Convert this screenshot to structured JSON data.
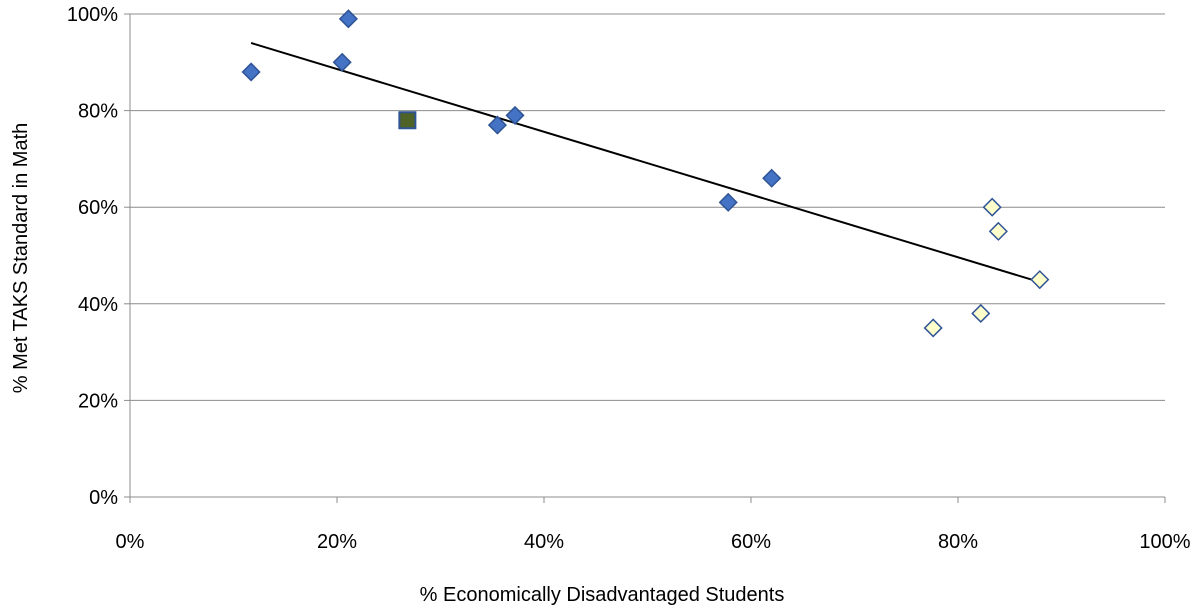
{
  "chart_data": {
    "type": "scatter",
    "title": "",
    "xlabel": "% Economically Disadvantaged Students",
    "ylabel": "% Met TAKS Standard in Math",
    "xlim": [
      0,
      1
    ],
    "ylim": [
      0,
      1
    ],
    "x_ticks": [
      0,
      0.2,
      0.4,
      0.6,
      0.8,
      1.0
    ],
    "y_ticks": [
      0,
      0.2,
      0.4,
      0.6,
      0.8,
      1.0
    ],
    "x_tick_labels": [
      "0%",
      "20%",
      "40%",
      "60%",
      "80%",
      "100%"
    ],
    "y_tick_labels": [
      "0%",
      "20%",
      "40%",
      "60%",
      "80%",
      "100%"
    ],
    "grid": {
      "horizontal": true,
      "vertical": false
    },
    "legend": "none",
    "series": [
      {
        "marker": "diamond",
        "fill": "#4472C4",
        "stroke": "#2F5496",
        "points": [
          {
            "x": 0.117,
            "y": 0.88
          },
          {
            "x": 0.205,
            "y": 0.9
          },
          {
            "x": 0.211,
            "y": 0.99
          },
          {
            "x": 0.355,
            "y": 0.77
          },
          {
            "x": 0.372,
            "y": 0.79
          },
          {
            "x": 0.578,
            "y": 0.61
          },
          {
            "x": 0.62,
            "y": 0.66
          }
        ]
      },
      {
        "marker": "square",
        "fill": "#4F6228",
        "stroke": "#2F5496",
        "points": [
          {
            "x": 0.268,
            "y": 0.78
          }
        ]
      },
      {
        "marker": "diamond",
        "fill": "#FFFFCC",
        "stroke": "#2F5496",
        "points": [
          {
            "x": 0.776,
            "y": 0.35
          },
          {
            "x": 0.822,
            "y": 0.38
          },
          {
            "x": 0.833,
            "y": 0.6
          },
          {
            "x": 0.839,
            "y": 0.55
          },
          {
            "x": 0.879,
            "y": 0.45
          }
        ]
      }
    ],
    "trendline": {
      "type": "linear",
      "color": "#000000",
      "from": {
        "x": 0.117,
        "y": 0.94
      },
      "to": {
        "x": 0.879,
        "y": 0.445
      }
    }
  }
}
